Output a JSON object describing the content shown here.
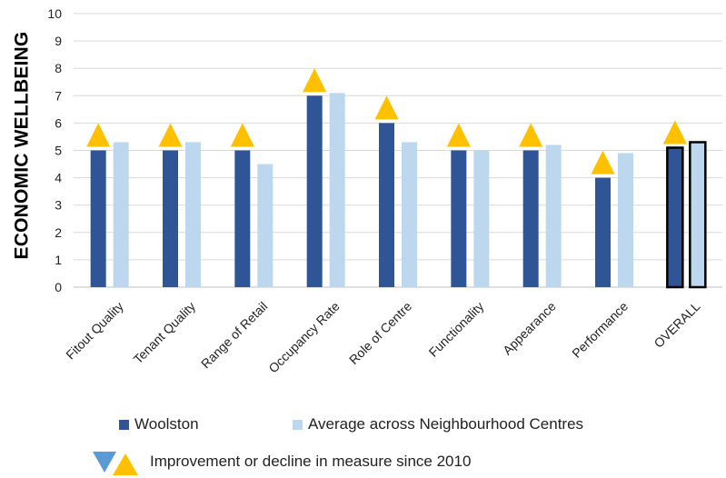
{
  "chart_data": {
    "type": "bar",
    "ylabel": "ECONOMIC WELLBEING",
    "ylim": [
      0,
      10
    ],
    "yticks": [
      0,
      1,
      2,
      3,
      4,
      5,
      6,
      7,
      8,
      9,
      10
    ],
    "grid": true,
    "categories": [
      "Fitout Quality",
      "Tenant Quality",
      "Range of Retail",
      "Occupancy Rate",
      "Role of Centre",
      "Functionality",
      "Appearance",
      "Performance",
      "OVERALL"
    ],
    "series": [
      {
        "name": "Woolston",
        "color": "#2F5597",
        "values": [
          5,
          5,
          5,
          7,
          6,
          5,
          5,
          4,
          5.1
        ]
      },
      {
        "name": "Average across Neighbourhood Centres",
        "color": "#BDD7EE",
        "values": [
          5.3,
          5.3,
          4.5,
          7.1,
          5.3,
          5.0,
          5.2,
          4.9,
          5.3
        ]
      }
    ],
    "outlined_category": "OVERALL",
    "change_markers": [
      "improvement",
      "improvement",
      "improvement",
      "improvement",
      "improvement",
      "improvement",
      "improvement",
      "improvement",
      "improvement"
    ],
    "marker_colors": {
      "improvement": "#FFC000",
      "decline": "#5B9BD5"
    },
    "legend_position": "bottom",
    "marker_legend": "Improvement or decline in measure since 2010"
  }
}
